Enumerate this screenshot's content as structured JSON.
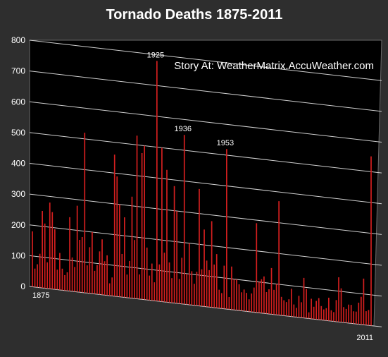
{
  "chart_data": {
    "type": "bar",
    "title": "Tornado Deaths 1875-2011",
    "annotation": "Story At: WeatherMatrix.AccuWeather.com",
    "x_start_label": "1875",
    "x_end_label": "2011",
    "ylim": [
      0,
      800
    ],
    "y_ticks": [
      "0",
      "100",
      "200",
      "300",
      "400",
      "500",
      "600",
      "700",
      "800"
    ],
    "grid": true,
    "colors": {
      "bar": "#d41f1f",
      "background": "#2e2e2e",
      "plot": "#000000",
      "grid": "#cfcfcf"
    },
    "callouts": [
      {
        "label": "1925",
        "index": 50
      },
      {
        "label": "1936",
        "index": 61
      },
      {
        "label": "1953",
        "index": 78
      }
    ],
    "x": [
      1875,
      1876,
      1877,
      1878,
      1879,
      1880,
      1881,
      1882,
      1883,
      1884,
      1885,
      1886,
      1887,
      1888,
      1889,
      1890,
      1891,
      1892,
      1893,
      1894,
      1895,
      1896,
      1897,
      1898,
      1899,
      1900,
      1901,
      1902,
      1903,
      1904,
      1905,
      1906,
      1907,
      1908,
      1909,
      1910,
      1911,
      1912,
      1913,
      1914,
      1915,
      1916,
      1917,
      1918,
      1919,
      1920,
      1921,
      1922,
      1923,
      1924,
      1925,
      1926,
      1927,
      1928,
      1929,
      1930,
      1931,
      1932,
      1933,
      1934,
      1935,
      1936,
      1937,
      1938,
      1939,
      1940,
      1941,
      1942,
      1943,
      1944,
      1945,
      1946,
      1947,
      1948,
      1949,
      1950,
      1951,
      1952,
      1953,
      1954,
      1955,
      1956,
      1957,
      1958,
      1959,
      1960,
      1961,
      1962,
      1963,
      1964,
      1965,
      1966,
      1967,
      1968,
      1969,
      1970,
      1971,
      1972,
      1973,
      1974,
      1975,
      1976,
      1977,
      1978,
      1979,
      1980,
      1981,
      1982,
      1983,
      1984,
      1985,
      1986,
      1987,
      1988,
      1989,
      1990,
      1991,
      1992,
      1993,
      1994,
      1995,
      1996,
      1997,
      1998,
      1999,
      2000,
      2001,
      2002,
      2003,
      2004,
      2005,
      2006,
      2007,
      2008,
      2009,
      2010,
      2011
    ],
    "values": [
      180,
      60,
      75,
      110,
      250,
      210,
      85,
      280,
      250,
      195,
      65,
      120,
      70,
      50,
      60,
      240,
      110,
      80,
      280,
      170,
      180,
      520,
      90,
      150,
      200,
      75,
      95,
      140,
      180,
      110,
      130,
      40,
      60,
      460,
      390,
      300,
      140,
      260,
      75,
      120,
      330,
      190,
      530,
      80,
      475,
      500,
      170,
      80,
      120,
      60,
      780,
      120,
      500,
      160,
      430,
      130,
      80,
      380,
      300,
      80,
      150,
      550,
      100,
      200,
      110,
      70,
      110,
      380,
      120,
      250,
      150,
      120,
      280,
      140,
      175,
      60,
      50,
      140,
      520,
      40,
      140,
      100,
      100,
      85,
      60,
      70,
      60,
      40,
      60,
      80,
      290,
      100,
      110,
      120,
      70,
      80,
      150,
      80,
      100,
      370,
      60,
      50,
      45,
      55,
      90,
      40,
      30,
      70,
      50,
      130,
      95,
      20,
      65,
      40,
      60,
      70,
      45,
      35,
      40,
      75,
      35,
      30,
      70,
      145,
      110,
      50,
      45,
      60,
      60,
      40,
      40,
      70,
      90,
      150,
      45,
      50,
      550
    ]
  }
}
